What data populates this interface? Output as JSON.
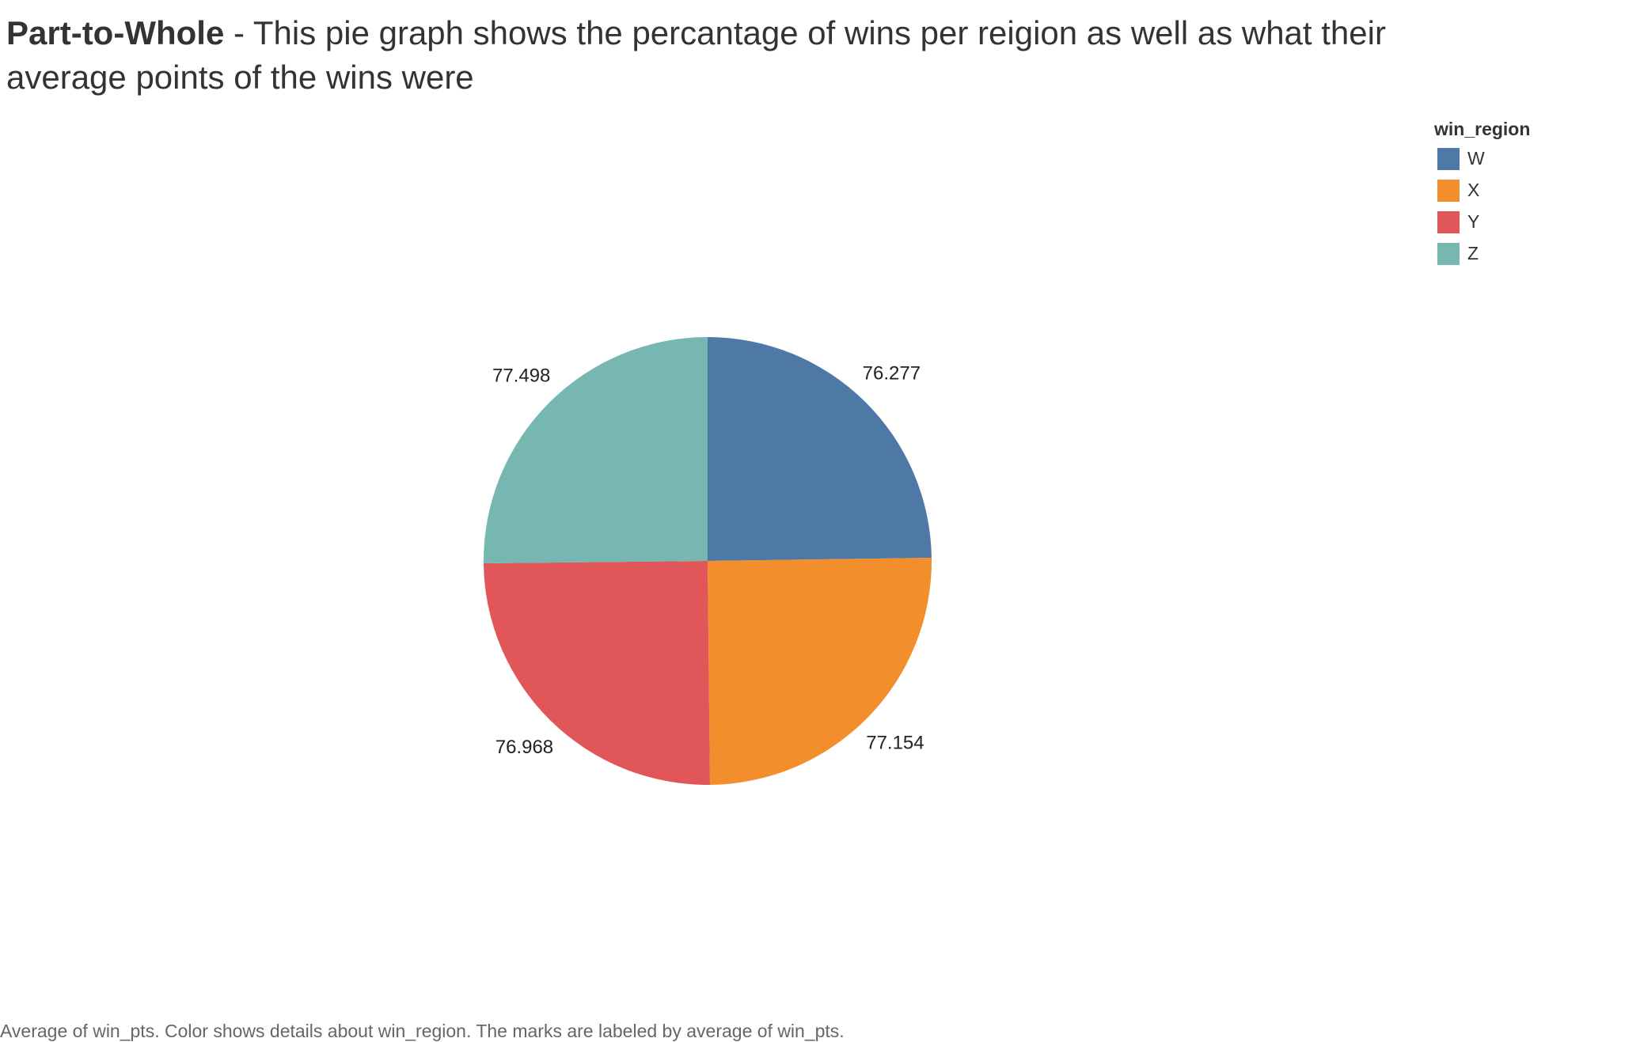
{
  "chart_data": {
    "type": "pie",
    "title_bold": "Part-to-Whole",
    "title": " - This pie graph shows the percantage of wins per reigion as well as what their average points of the wins were",
    "legend_title": "win_region",
    "caption": "Average of win_pts.  Color shows details about win_region.  The marks are labeled by average of win_pts.",
    "categories": [
      "W",
      "X",
      "Y",
      "Z"
    ],
    "values": [
      76.277,
      77.154,
      76.968,
      77.498
    ],
    "colors": [
      "#4e79a7",
      "#f28e2b",
      "#e15759",
      "#76b7b2"
    ],
    "legend": "top-right"
  }
}
